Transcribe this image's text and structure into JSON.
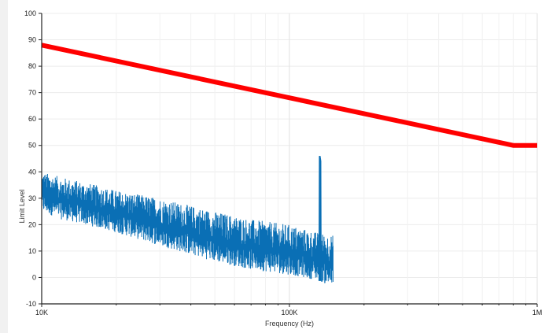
{
  "chart_data": {
    "type": "line",
    "xlabel": "Frequency (Hz)",
    "ylabel": "Limit Level",
    "x_scale": "log",
    "xlim": [
      10000,
      1000000
    ],
    "ylim": [
      -10,
      100
    ],
    "x_ticks": [
      {
        "value": 10000,
        "label": "10K"
      },
      {
        "value": 100000,
        "label": "100K"
      },
      {
        "value": 1000000,
        "label": "1M"
      }
    ],
    "y_ticks": [
      -10,
      0,
      10,
      20,
      30,
      40,
      50,
      60,
      70,
      80,
      90,
      100
    ],
    "grid": true,
    "legend": "none",
    "series": [
      {
        "color": "#ff0000",
        "points": [
          [
            10000,
            88
          ],
          [
            800000,
            50
          ],
          [
            1000000,
            50
          ]
        ]
      },
      {
        "color": "#0a6fb5",
        "envelope": {
          "x": [
            10000,
            12000,
            15000,
            20000,
            30000,
            50000,
            70000,
            100000,
            130000,
            150000
          ],
          "upper": [
            40,
            38,
            36,
            33,
            30,
            25,
            22,
            20,
            17,
            16
          ],
          "lower": [
            25,
            22,
            20,
            17,
            12,
            6,
            3,
            1,
            -1,
            -4
          ]
        },
        "peak": {
          "x": 132000,
          "y": 46
        }
      }
    ]
  }
}
